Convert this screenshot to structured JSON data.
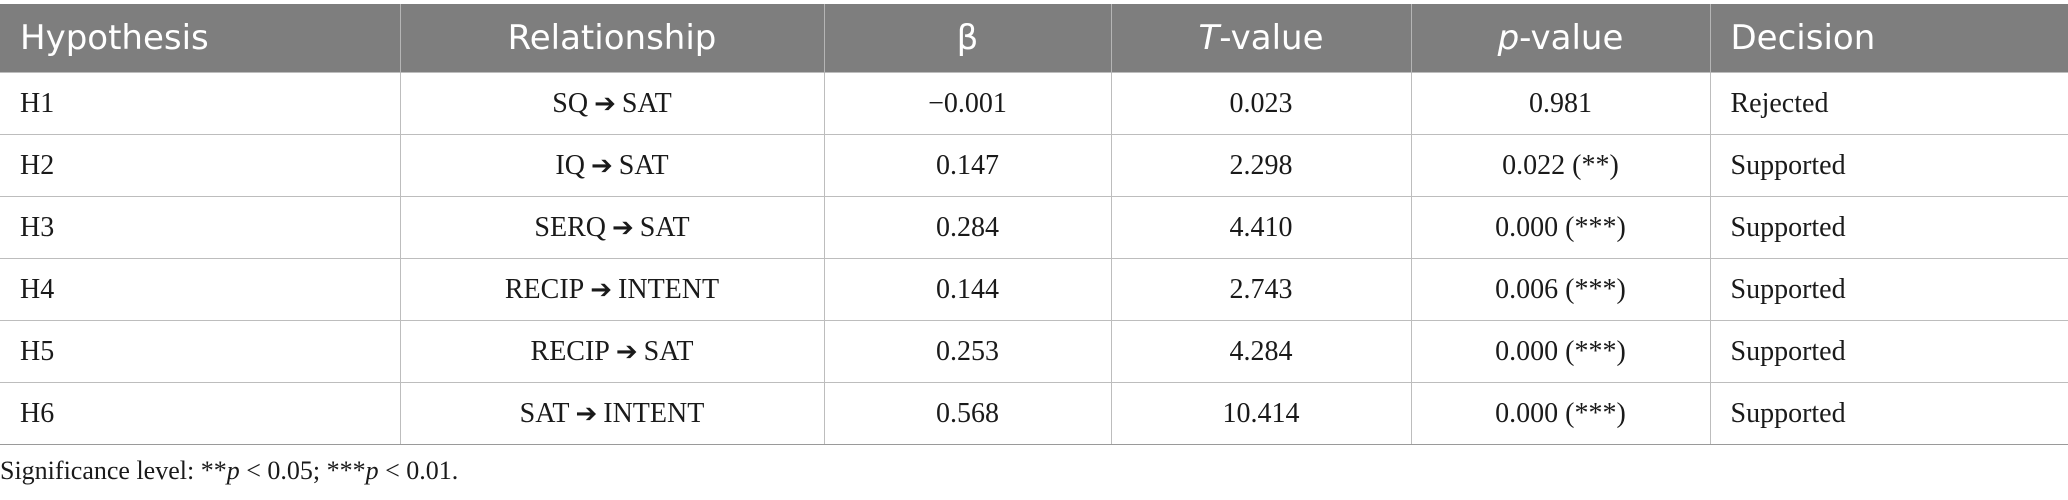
{
  "table": {
    "headers": {
      "hypothesis": "Hypothesis",
      "relationship": "Relationship",
      "beta": "β",
      "t_italic": "T",
      "t_rest": "-value",
      "p_italic": "p",
      "p_rest": "-value",
      "decision": "Decision"
    },
    "arrow": "➔",
    "rows": [
      {
        "hypothesis": "H1",
        "from": "SQ",
        "to": "SAT",
        "beta": "−0.001",
        "t": "0.023",
        "p": "0.981",
        "decision": "Rejected"
      },
      {
        "hypothesis": "H2",
        "from": "IQ",
        "to": "SAT",
        "beta": "0.147",
        "t": "2.298",
        "p": "0.022 (**)",
        "decision": "Supported"
      },
      {
        "hypothesis": "H3",
        "from": "SERQ",
        "to": "SAT",
        "beta": "0.284",
        "t": "4.410",
        "p": "0.000 (***)",
        "decision": "Supported"
      },
      {
        "hypothesis": "H4",
        "from": "RECIP",
        "to": "INTENT",
        "beta": "0.144",
        "t": "2.743",
        "p": "0.006 (***)",
        "decision": "Supported"
      },
      {
        "hypothesis": "H5",
        "from": "RECIP",
        "to": "SAT",
        "beta": "0.253",
        "t": "4.284",
        "p": "0.000 (***)",
        "decision": "Supported"
      },
      {
        "hypothesis": "H6",
        "from": "SAT",
        "to": "INTENT",
        "beta": "0.568",
        "t": "10.414",
        "p": "0.000 (***)",
        "decision": "Supported"
      }
    ]
  },
  "note": {
    "prefix": "Significance level: **",
    "p1": "p",
    "mid": " < 0.05; ***",
    "p2": "p",
    "suffix": " < 0.01."
  }
}
